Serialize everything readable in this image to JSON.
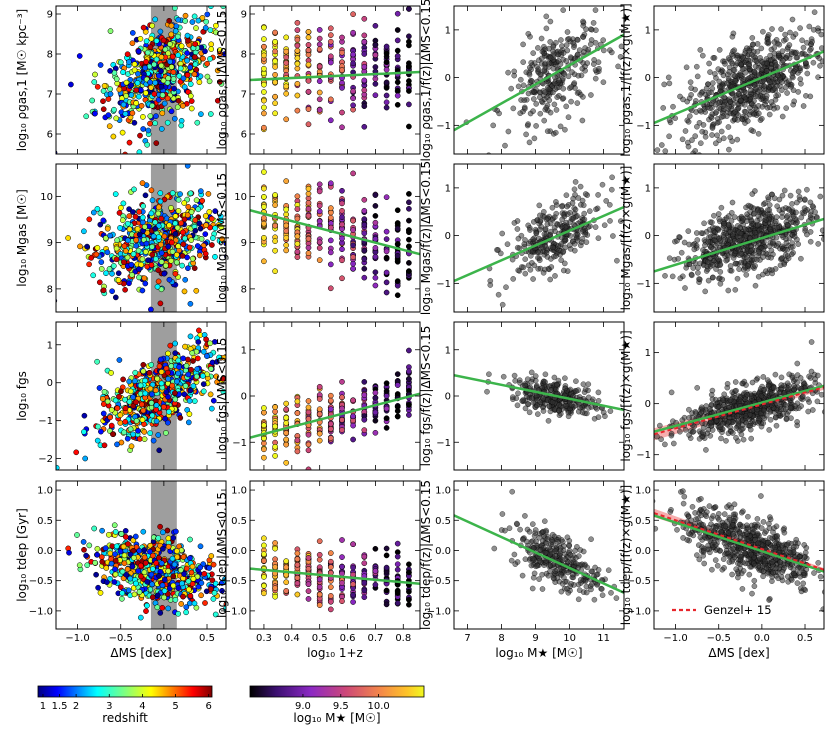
{
  "figure": {
    "legend": {
      "label": "Genzel+ 15",
      "color": "#e8262c",
      "placement": "lower-right of bottom-right panel"
    },
    "colors": {
      "fit_green": "#3cb44b",
      "genzel_red": "#e8262c",
      "shade_red": "#f4a0a0",
      "gray_band": "#9e9e9e",
      "black_point": "#333333"
    }
  },
  "colorbars": [
    {
      "id": "redshift",
      "label": "redshift",
      "cmap": "jet",
      "ticks": [
        "1",
        "1.5",
        "2",
        "3",
        "4",
        "5",
        "6"
      ],
      "tick_positions": [
        1,
        1.5,
        2,
        3,
        4,
        5,
        6
      ],
      "range": [
        0.85,
        6.1
      ]
    },
    {
      "id": "mstar",
      "label": "log₁₀ M★ [M☉]",
      "cmap": "plasma",
      "ticks": [
        "9.0",
        "9.5",
        "10.0"
      ],
      "tick_positions": [
        9.0,
        9.5,
        10.0
      ],
      "range": [
        8.3,
        10.6
      ]
    }
  ],
  "chart_data": [
    {
      "type": "scatter",
      "row": 0,
      "col": 0,
      "color": "redshift",
      "ylabel": "log₁₀ ρgas,1 [M☉ kpc⁻³]",
      "xlabel": "",
      "xlim": [
        -1.25,
        0.72
      ],
      "ylim": [
        5.5,
        9.2
      ],
      "yticks": [
        "6",
        "7",
        "8",
        "9"
      ],
      "ytick_values": [
        6,
        7,
        8,
        9
      ],
      "xticks": [],
      "xtick_values": [
        -1.0,
        -0.5,
        0.0,
        0.5
      ],
      "band": [
        -0.15,
        0.15
      ],
      "cloud": {
        "n": 600,
        "cx": -0.08,
        "sx": 0.35,
        "slope": 0.9,
        "intercept": 7.6,
        "sy": 0.6
      }
    },
    {
      "type": "scatter",
      "row": 0,
      "col": 1,
      "color": "mstar",
      "ylabel": "log₁₀ ρgas,1|ΔMS<0.15",
      "xlabel": "",
      "xlim": [
        0.25,
        0.86
      ],
      "ylim": [
        5.5,
        9.2
      ],
      "yticks": [
        "6",
        "7",
        "8",
        "9"
      ],
      "ytick_values": [
        6,
        7,
        8,
        9
      ],
      "xticks": [],
      "xtick_values": [
        0.3,
        0.4,
        0.5,
        0.6,
        0.7,
        0.8
      ],
      "fit": [
        [
          0.25,
          7.35
        ],
        [
          0.86,
          7.55
        ]
      ],
      "cloud": {
        "n": 300,
        "grid": true,
        "cx": 0.55,
        "sx": 0.16,
        "slope": 0.3,
        "intercept": 7.45,
        "sy": 0.6
      }
    },
    {
      "type": "scatter",
      "row": 0,
      "col": 2,
      "color": "black",
      "ylabel": "log₁₀ ρgas,1/f(z)|ΔMS<0.15",
      "xlabel": "",
      "xlim": [
        6.6,
        11.6
      ],
      "ylim": [
        -1.6,
        1.5
      ],
      "yticks": [
        "−1",
        "0",
        "1"
      ],
      "ytick_values": [
        -1,
        0,
        1
      ],
      "xticks": [],
      "xtick_values": [
        7,
        8,
        9,
        10,
        11
      ],
      "fit": [
        [
          6.6,
          -1.1
        ],
        [
          11.6,
          0.9
        ]
      ],
      "cloud": {
        "n": 300,
        "cx": 9.6,
        "sx": 0.7,
        "slope": 0.4,
        "intercept": -3.8,
        "sy": 0.5
      }
    },
    {
      "type": "scatter",
      "row": 0,
      "col": 3,
      "color": "black",
      "ylabel": "log₁₀ ρgas,1/[f(z)×g(M★)]",
      "xlabel": "",
      "xlim": [
        -1.25,
        0.72
      ],
      "ylim": [
        -1.6,
        1.5
      ],
      "yticks": [
        "−1",
        "0",
        "1"
      ],
      "ytick_values": [
        -1,
        0,
        1
      ],
      "xticks": [],
      "xtick_values": [
        -1.0,
        -0.5,
        0.0,
        0.5
      ],
      "fit": [
        [
          -1.25,
          -0.95
        ],
        [
          0.72,
          0.55
        ]
      ],
      "cloud": {
        "n": 650,
        "cx": -0.15,
        "sx": 0.38,
        "slope": 0.76,
        "intercept": 0.0,
        "sy": 0.45
      }
    },
    {
      "type": "scatter",
      "row": 1,
      "col": 0,
      "color": "redshift",
      "ylabel": "log₁₀ Mgas [M☉]",
      "xlabel": "",
      "xlim": [
        -1.25,
        0.72
      ],
      "ylim": [
        7.5,
        10.7
      ],
      "yticks": [
        "8",
        "9",
        "10"
      ],
      "ytick_values": [
        8,
        9,
        10
      ],
      "xticks": [],
      "xtick_values": [
        -1.0,
        -0.5,
        0.0,
        0.5
      ],
      "band": [
        -0.15,
        0.15
      ],
      "cloud": {
        "n": 600,
        "cx": -0.08,
        "sx": 0.35,
        "slope": 0.4,
        "intercept": 9.1,
        "sy": 0.5
      }
    },
    {
      "type": "scatter",
      "row": 1,
      "col": 1,
      "color": "mstar",
      "ylabel": "log₁₀ Mgas|ΔMS<0.15",
      "xlabel": "",
      "xlim": [
        0.25,
        0.86
      ],
      "ylim": [
        7.5,
        10.7
      ],
      "yticks": [
        "8",
        "9",
        "10"
      ],
      "ytick_values": [
        8,
        9,
        10
      ],
      "xticks": [],
      "xtick_values": [
        0.3,
        0.4,
        0.5,
        0.6,
        0.7,
        0.8
      ],
      "fit": [
        [
          0.25,
          9.7
        ],
        [
          0.86,
          8.75
        ]
      ],
      "cloud": {
        "n": 300,
        "grid": true,
        "cx": 0.55,
        "sx": 0.16,
        "slope": -1.55,
        "intercept": 10.1,
        "sy": 0.45
      }
    },
    {
      "type": "scatter",
      "row": 1,
      "col": 2,
      "color": "black",
      "ylabel": "log₁₀ Mgas/f(z)|ΔMS<0.15",
      "xlabel": "",
      "xlim": [
        6.6,
        11.6
      ],
      "ylim": [
        -1.6,
        1.5
      ],
      "yticks": [
        "−1",
        "0",
        "1"
      ],
      "ytick_values": [
        -1,
        0,
        1
      ],
      "xticks": [],
      "xtick_values": [
        7,
        8,
        9,
        10,
        11
      ],
      "fit": [
        [
          6.6,
          -0.95
        ],
        [
          11.6,
          0.6
        ]
      ],
      "cloud": {
        "n": 300,
        "cx": 9.6,
        "sx": 0.7,
        "slope": 0.31,
        "intercept": -3.0,
        "sy": 0.35
      }
    },
    {
      "type": "scatter",
      "row": 1,
      "col": 3,
      "color": "black",
      "ylabel": "log₁₀ Mgas/[f(z)×g(M★)]",
      "xlabel": "",
      "xlim": [
        -1.25,
        0.72
      ],
      "ylim": [
        -1.6,
        1.5
      ],
      "yticks": [
        "−1",
        "0",
        "1"
      ],
      "ytick_values": [
        -1,
        0,
        1
      ],
      "xticks": [],
      "xtick_values": [
        -1.0,
        -0.5,
        0.0,
        0.5
      ],
      "fit": [
        [
          -1.25,
          -0.75
        ],
        [
          0.72,
          0.35
        ]
      ],
      "cloud": {
        "n": 650,
        "cx": -0.15,
        "sx": 0.38,
        "slope": 0.56,
        "intercept": 0.02,
        "sy": 0.35
      }
    },
    {
      "type": "scatter",
      "row": 2,
      "col": 0,
      "color": "redshift",
      "ylabel": "log₁₀ fgs",
      "xlabel": "",
      "xlim": [
        -1.25,
        0.72
      ],
      "ylim": [
        -2.3,
        1.6
      ],
      "yticks": [
        "−2",
        "−1",
        "0",
        "1"
      ],
      "ytick_values": [
        -2,
        -1,
        0,
        1
      ],
      "xticks": [],
      "xtick_values": [
        -1.0,
        -0.5,
        0.0,
        0.5
      ],
      "band": [
        -0.15,
        0.15
      ],
      "cloud": {
        "n": 600,
        "cx": -0.08,
        "sx": 0.35,
        "slope": 1.1,
        "intercept": -0.2,
        "sy": 0.45
      }
    },
    {
      "type": "scatter",
      "row": 2,
      "col": 1,
      "color": "mstar",
      "ylabel": "log₁₀ fgs|ΔMS<0.15",
      "xlabel": "",
      "xlim": [
        0.25,
        0.86
      ],
      "ylim": [
        -1.6,
        1.6
      ],
      "yticks": [
        "−1",
        "0",
        "1"
      ],
      "ytick_values": [
        -1,
        0,
        1
      ],
      "xticks": [],
      "xtick_values": [
        0.3,
        0.4,
        0.5,
        0.6,
        0.7,
        0.8
      ],
      "fit": [
        [
          0.25,
          -0.9
        ],
        [
          0.86,
          0.05
        ]
      ],
      "cloud": {
        "n": 300,
        "grid": true,
        "cx": 0.55,
        "sx": 0.16,
        "slope": 1.55,
        "intercept": -1.28,
        "sy": 0.3
      }
    },
    {
      "type": "scatter",
      "row": 2,
      "col": 2,
      "color": "black",
      "ylabel": "log₁₀ fgs/f(z)|ΔMS<0.15",
      "xlabel": "",
      "xlim": [
        6.6,
        11.6
      ],
      "ylim": [
        -1.6,
        1.6
      ],
      "yticks": [
        "−1",
        "0",
        "1"
      ],
      "ytick_values": [
        -1,
        0,
        1
      ],
      "xticks": [],
      "xtick_values": [
        7,
        8,
        9,
        10,
        11
      ],
      "fit": [
        [
          6.6,
          0.45
        ],
        [
          11.6,
          -0.3
        ]
      ],
      "cloud": {
        "n": 300,
        "cx": 9.6,
        "sx": 0.65,
        "slope": -0.15,
        "intercept": 1.4,
        "sy": 0.18
      }
    },
    {
      "type": "scatter",
      "row": 2,
      "col": 3,
      "color": "black",
      "ylabel": "log₁₀ fgs/[f(z)×g(M★)]",
      "xlabel": "",
      "xlim": [
        -1.25,
        0.72
      ],
      "ylim": [
        -1.3,
        1.6
      ],
      "yticks": [
        "−1",
        "0",
        "1"
      ],
      "ytick_values": [
        -1,
        0,
        1
      ],
      "xticks": [],
      "xtick_values": [
        -1.0,
        -0.5,
        0.0,
        0.5
      ],
      "fit": [
        [
          -1.25,
          -0.55
        ],
        [
          0.72,
          0.35
        ]
      ],
      "genzel": [
        [
          -1.25,
          -0.6
        ],
        [
          0.72,
          0.32
        ]
      ],
      "genzel_band": 0.12,
      "cloud": {
        "n": 650,
        "cx": -0.15,
        "sx": 0.38,
        "slope": 0.46,
        "intercept": 0.0,
        "sy": 0.22
      }
    },
    {
      "type": "scatter",
      "row": 3,
      "col": 0,
      "color": "redshift",
      "ylabel": "log₁₀ tdep [Gyr]",
      "xlabel": "ΔMS [dex]",
      "xlim": [
        -1.25,
        0.72
      ],
      "ylim": [
        -1.3,
        1.15
      ],
      "yticks": [
        "−1.0",
        "−0.5",
        "0.0",
        "0.5",
        "1.0"
      ],
      "ytick_values": [
        -1.0,
        -0.5,
        0.0,
        0.5,
        1.0
      ],
      "xticks": [
        "−1.0",
        "−0.5",
        "0.0",
        "0.5"
      ],
      "xtick_values": [
        -1.0,
        -0.5,
        0.0,
        0.5
      ],
      "band": [
        -0.15,
        0.15
      ],
      "cloud": {
        "n": 600,
        "cx": -0.08,
        "sx": 0.35,
        "slope": -0.3,
        "intercept": -0.35,
        "sy": 0.28
      }
    },
    {
      "type": "scatter",
      "row": 3,
      "col": 1,
      "color": "mstar",
      "ylabel": "log₁₀ tdep|ΔMS<0.15",
      "xlabel": "log₁₀ 1+z",
      "xlim": [
        0.25,
        0.86
      ],
      "ylim": [
        -1.3,
        1.15
      ],
      "yticks": [
        "−1.0",
        "−0.5",
        "0.0",
        "0.5",
        "1.0"
      ],
      "ytick_values": [
        -1.0,
        -0.5,
        0.0,
        0.5,
        1.0
      ],
      "xticks": [
        "0.3",
        "0.4",
        "0.5",
        "0.6",
        "0.7",
        "0.8"
      ],
      "xtick_values": [
        0.3,
        0.4,
        0.5,
        0.6,
        0.7,
        0.8
      ],
      "fit": [
        [
          0.25,
          -0.3
        ],
        [
          0.86,
          -0.55
        ]
      ],
      "cloud": {
        "n": 300,
        "grid": true,
        "cx": 0.55,
        "sx": 0.16,
        "slope": -0.4,
        "intercept": -0.2,
        "sy": 0.22
      }
    },
    {
      "type": "scatter",
      "row": 3,
      "col": 2,
      "color": "black",
      "ylabel": "log₁₀ tdep/f(z)|ΔMS<0.15",
      "xlabel": "log₁₀ M★ [M☉]",
      "xlim": [
        6.6,
        11.6
      ],
      "ylim": [
        -1.3,
        1.15
      ],
      "yticks": [
        "−1.0",
        "−0.5",
        "0.0",
        "0.5",
        "1.0"
      ],
      "ytick_values": [
        -1.0,
        -0.5,
        0.0,
        0.5,
        1.0
      ],
      "xticks": [
        "7",
        "8",
        "9",
        "10",
        "11"
      ],
      "xtick_values": [
        7,
        8,
        9,
        10,
        11
      ],
      "fit": [
        [
          6.6,
          0.58
        ],
        [
          11.6,
          -0.7
        ]
      ],
      "cloud": {
        "n": 300,
        "cx": 9.6,
        "sx": 0.65,
        "slope": -0.26,
        "intercept": 2.35,
        "sy": 0.22
      }
    },
    {
      "type": "scatter",
      "row": 3,
      "col": 3,
      "color": "black",
      "ylabel": "log₁₀ tdep/[f(z)×g(M★)]",
      "xlabel": "ΔMS [dex]",
      "xlim": [
        -1.25,
        0.72
      ],
      "ylim": [
        -1.3,
        1.15
      ],
      "yticks": [
        "−1.0",
        "−0.5",
        "0.0",
        "0.5",
        "1.0"
      ],
      "ytick_values": [
        -1.0,
        -0.5,
        0.0,
        0.5,
        1.0
      ],
      "xticks": [
        "−1.0",
        "−0.5",
        "0.0",
        "0.5"
      ],
      "xtick_values": [
        -1.0,
        -0.5,
        0.0,
        0.5
      ],
      "fit": [
        [
          -1.25,
          0.58
        ],
        [
          0.72,
          -0.35
        ]
      ],
      "genzel": [
        [
          -1.25,
          0.62
        ],
        [
          0.72,
          -0.32
        ]
      ],
      "genzel_band": 0.07,
      "cloud": {
        "n": 650,
        "cx": -0.15,
        "sx": 0.38,
        "slope": -0.47,
        "intercept": 0.0,
        "sy": 0.25
      },
      "legend": true
    }
  ]
}
